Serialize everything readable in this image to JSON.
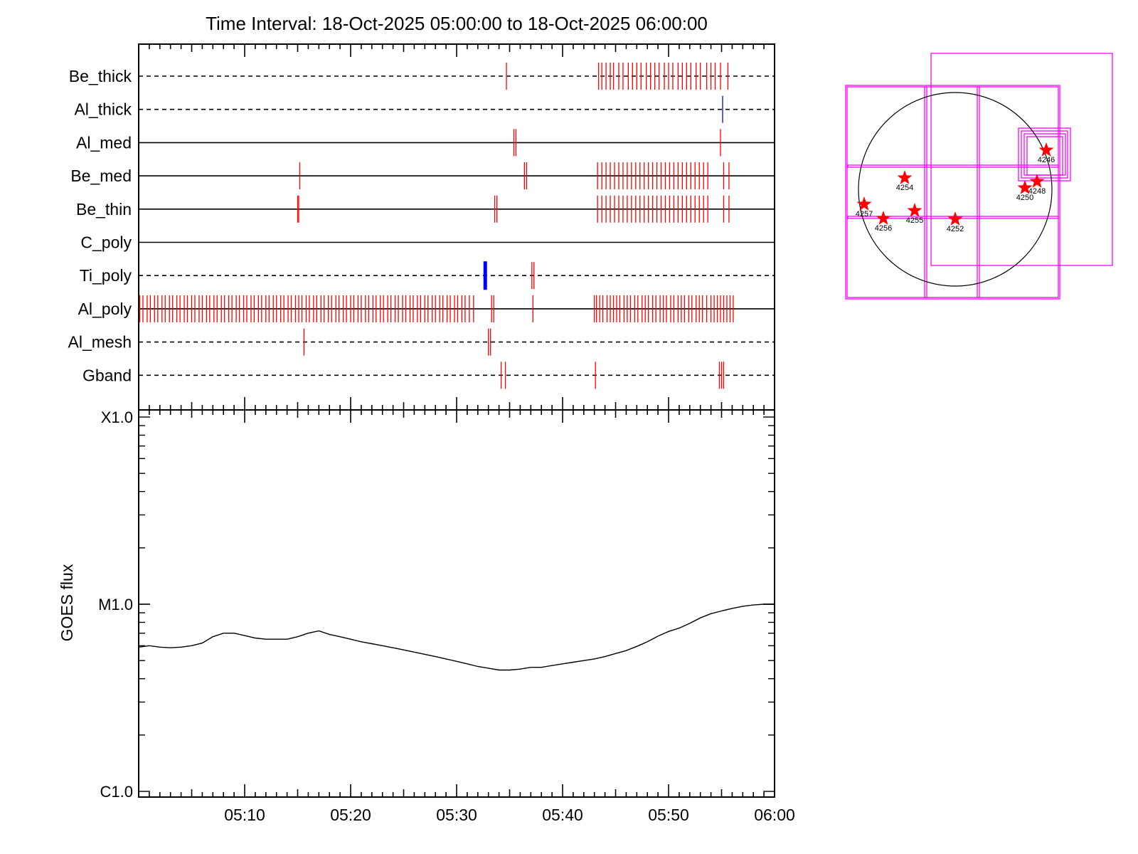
{
  "title": "Time Interval: 18-Oct-2025 05:00:00 to 18-Oct-2025 06:00:00",
  "chart_data": [
    {
      "type": "timeline",
      "x_range_minutes": [
        0,
        60
      ],
      "channels": [
        {
          "name": "Be_thick",
          "baseline": "dashed"
        },
        {
          "name": "Al_thick",
          "baseline": "dashed"
        },
        {
          "name": "Al_med",
          "baseline": "solid"
        },
        {
          "name": "Be_med",
          "baseline": "solid"
        },
        {
          "name": "Be_thin",
          "baseline": "solid"
        },
        {
          "name": "C_poly",
          "baseline": "solid"
        },
        {
          "name": "Ti_poly",
          "baseline": "dashed"
        },
        {
          "name": "Al_poly",
          "baseline": "solid"
        },
        {
          "name": "Al_mesh",
          "baseline": "dashed"
        },
        {
          "name": "Gband",
          "baseline": "dashed"
        }
      ],
      "marks": [
        {
          "channel": "Be_thick",
          "color": "#ff0000",
          "weight": "thin",
          "t": [
            34.7,
            43.4,
            43.7,
            44.1,
            44.5,
            44.8,
            45.3,
            45.7,
            46.2,
            46.6,
            47.0,
            47.4,
            47.9,
            48.3,
            48.7,
            49.1,
            49.6,
            50.0,
            50.4,
            50.9,
            51.3,
            51.7,
            52.1,
            52.6,
            53.0,
            53.6,
            54.0,
            54.4,
            54.9,
            55.6
          ]
        },
        {
          "channel": "Al_thick",
          "color": "#0000ff",
          "weight": "thin",
          "t": [
            55.1
          ]
        },
        {
          "channel": "Al_med",
          "color": "#ff0000",
          "weight": "thin",
          "t": [
            35.4,
            35.6,
            54.9
          ]
        },
        {
          "channel": "Be_med",
          "color": "#ff0000",
          "weight": "thin",
          "t": [
            15.2,
            36.4,
            36.6,
            43.3,
            43.7,
            44.1,
            44.5,
            44.9,
            45.3,
            45.7,
            46.1,
            46.5,
            46.9,
            47.3,
            47.7,
            48.1,
            48.5,
            48.9,
            49.3,
            49.7,
            50.1,
            50.5,
            50.9,
            51.3,
            51.7,
            52.1,
            52.5,
            52.9,
            53.3,
            53.7,
            55.2,
            55.7
          ]
        },
        {
          "channel": "Be_thin",
          "color": "#ff0000",
          "weight": "thin",
          "t": [
            15.0,
            15.1,
            33.6,
            33.8,
            43.3,
            43.7,
            44.1,
            44.5,
            44.9,
            45.3,
            45.7,
            46.1,
            46.5,
            46.9,
            47.3,
            47.7,
            48.1,
            48.5,
            48.9,
            49.3,
            49.7,
            50.1,
            50.5,
            50.9,
            51.3,
            51.7,
            52.1,
            52.5,
            52.9,
            53.3,
            53.7,
            55.2,
            55.7
          ]
        },
        {
          "channel": "Ti_poly",
          "color": "#0000ff",
          "weight": "thick",
          "t": [
            32.7
          ]
        },
        {
          "channel": "Ti_poly",
          "color": "#ff0000",
          "weight": "thin",
          "t": [
            37.1,
            37.3
          ]
        },
        {
          "channel": "Al_poly",
          "color": "#ff0000",
          "weight": "thin",
          "t": [
            0.1,
            0.4,
            0.8,
            1.1,
            1.5,
            1.8,
            2.2,
            2.5,
            2.9,
            3.2,
            3.6,
            3.9,
            4.3,
            4.6,
            5.0,
            5.3,
            5.7,
            6.0,
            6.4,
            6.7,
            7.1,
            7.4,
            7.8,
            8.1,
            8.5,
            8.8,
            9.2,
            9.5,
            9.9,
            10.2,
            10.6,
            10.9,
            11.3,
            11.6,
            12.0,
            12.3,
            12.7,
            13.0,
            13.4,
            13.7,
            14.1,
            14.4,
            14.8,
            15.1,
            15.4,
            15.8,
            16.1,
            16.5,
            16.8,
            17.2,
            17.5,
            17.9,
            18.2,
            18.6,
            18.9,
            19.3,
            19.6,
            20.0,
            20.3,
            20.7,
            21.0,
            21.4,
            21.7,
            22.1,
            22.4,
            22.8,
            23.1,
            23.5,
            23.8,
            24.2,
            24.5,
            24.9,
            25.2,
            25.6,
            25.9,
            26.3,
            26.6,
            27.0,
            27.3,
            27.7,
            28.0,
            28.4,
            28.7,
            29.1,
            29.4,
            29.8,
            30.1,
            30.5,
            30.8,
            31.2,
            31.6,
            33.3,
            33.5,
            37.2,
            43.0,
            43.2,
            43.5,
            43.8,
            44.2,
            44.5,
            44.8,
            45.1,
            45.4,
            45.8,
            46.1,
            46.4,
            46.8,
            47.1,
            47.5,
            47.8,
            48.1,
            48.5,
            48.8,
            49.2,
            49.5,
            49.8,
            50.2,
            50.5,
            50.9,
            51.2,
            51.5,
            51.9,
            52.2,
            52.6,
            52.9,
            53.2,
            53.6,
            54.0,
            54.3,
            54.6,
            54.9,
            55.2,
            55.5,
            55.8,
            56.1
          ]
        },
        {
          "channel": "Al_mesh",
          "color": "#ff0000",
          "weight": "thin",
          "t": [
            15.6,
            33.0,
            33.2
          ]
        },
        {
          "channel": "Gband",
          "color": "#ff0000",
          "weight": "thin",
          "t": [
            34.2,
            34.6,
            43.1,
            54.8,
            55.0,
            55.2
          ]
        }
      ]
    },
    {
      "type": "line",
      "ylabel": "GOES flux",
      "yscale": "log",
      "y_ticks": [
        "C1.0",
        "M1.0",
        "X1.0"
      ],
      "ylim": [
        1e-06,
        0.0001
      ],
      "x_ticks": [
        "05:10",
        "05:20",
        "05:30",
        "05:40",
        "05:50",
        "06:00"
      ],
      "x_tick_minutes": [
        10,
        20,
        30,
        40,
        50,
        60
      ],
      "xlim_minutes": [
        0,
        60
      ],
      "series": [
        {
          "x_minutes": [
            0,
            1,
            2,
            3,
            4,
            5,
            6,
            7,
            8,
            9,
            10,
            11,
            12,
            13,
            14,
            15,
            16,
            17,
            18,
            19,
            20,
            21,
            22,
            23,
            24,
            25,
            26,
            27,
            28,
            29,
            30,
            31,
            32,
            33,
            34,
            35,
            36,
            37,
            38,
            39,
            40,
            41,
            42,
            43,
            44,
            45,
            46,
            47,
            48,
            49,
            50,
            51,
            52,
            53,
            54,
            55,
            56,
            57,
            58,
            59,
            60
          ],
          "y": [
            5.9e-06,
            6e-06,
            5.9e-06,
            5.85e-06,
            5.9e-06,
            6e-06,
            6.2e-06,
            6.7e-06,
            7e-06,
            7e-06,
            6.8e-06,
            6.6e-06,
            6.5e-06,
            6.5e-06,
            6.5e-06,
            6.7e-06,
            7e-06,
            7.2e-06,
            6.9e-06,
            6.7e-06,
            6.5e-06,
            6.3e-06,
            6.15e-06,
            6e-06,
            5.85e-06,
            5.7e-06,
            5.55e-06,
            5.4e-06,
            5.25e-06,
            5.1e-06,
            4.95e-06,
            4.8e-06,
            4.65e-06,
            4.55e-06,
            4.45e-06,
            4.45e-06,
            4.5e-06,
            4.6e-06,
            4.6e-06,
            4.7e-06,
            4.8e-06,
            4.9e-06,
            5e-06,
            5.1e-06,
            5.25e-06,
            5.45e-06,
            5.65e-06,
            5.95e-06,
            6.3e-06,
            6.75e-06,
            7.15e-06,
            7.45e-06,
            7.9e-06,
            8.45e-06,
            8.9e-06,
            9.2e-06,
            9.5e-06,
            9.75e-06,
            9.9e-06,
            1e-05,
            1e-05
          ]
        }
      ]
    }
  ],
  "sun_map": {
    "frame_color": "#ff00ff",
    "star_color": "#ff0000",
    "regions": [
      "4246",
      "4248",
      "4250",
      "4252",
      "4254",
      "4255",
      "4256",
      "4257"
    ]
  }
}
